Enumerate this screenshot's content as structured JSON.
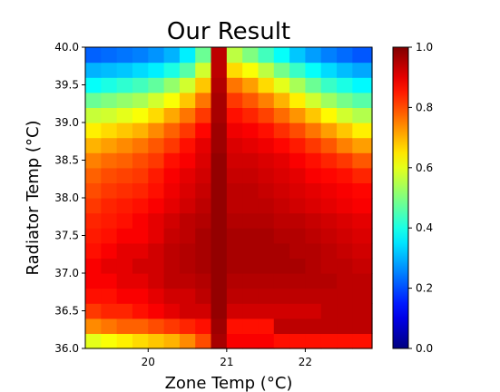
{
  "chart_data": {
    "type": "heatmap",
    "title": "Our Result",
    "xlabel": "Zone Temp (°C)",
    "ylabel": "Radiator Temp (°C)",
    "x_range": [
      19.2,
      22.85
    ],
    "y_range": [
      36.0,
      40.0
    ],
    "x_ticks": [
      "20",
      "21",
      "22"
    ],
    "x_tick_values": [
      20,
      21,
      22
    ],
    "y_ticks": [
      "36.0",
      "36.5",
      "37.0",
      "37.5",
      "38.0",
      "38.5",
      "39.0",
      "39.5",
      "40.0"
    ],
    "y_tick_values": [
      36.0,
      36.5,
      37.0,
      37.5,
      38.0,
      38.5,
      39.0,
      39.5,
      40.0
    ],
    "colormap": "jet",
    "vmin": 0.0,
    "vmax": 1.0,
    "colorbar_ticks": [
      "0.0",
      "0.2",
      "0.4",
      "0.6",
      "0.8",
      "1.0"
    ],
    "colorbar_tick_values": [
      0.0,
      0.2,
      0.4,
      0.6,
      0.8,
      1.0
    ],
    "x_centers": [
      19.3,
      19.5,
      19.7,
      19.9,
      20.1,
      20.3,
      20.5,
      20.7,
      20.9,
      21.1,
      21.3,
      21.5,
      21.7,
      21.9,
      22.1,
      22.3,
      22.5,
      22.7
    ],
    "y_centers": [
      36.1,
      36.3,
      36.5,
      36.7,
      36.9,
      37.1,
      37.3,
      37.5,
      37.7,
      37.9,
      38.1,
      38.3,
      38.5,
      38.7,
      38.9,
      39.1,
      39.3,
      39.5,
      39.7,
      39.9
    ],
    "values": [
      [
        0.6,
        0.62,
        0.64,
        0.66,
        0.68,
        0.7,
        0.74,
        0.8,
        0.96,
        0.88,
        0.88,
        0.88,
        0.86,
        0.86,
        0.86,
        0.86,
        0.86,
        0.86
      ],
      [
        0.74,
        0.76,
        0.78,
        0.78,
        0.8,
        0.82,
        0.84,
        0.86,
        0.97,
        0.86,
        0.86,
        0.86,
        0.94,
        0.94,
        0.94,
        0.94,
        0.94,
        0.94
      ],
      [
        0.82,
        0.84,
        0.84,
        0.86,
        0.88,
        0.9,
        0.92,
        0.92,
        0.98,
        0.92,
        0.92,
        0.92,
        0.92,
        0.92,
        0.92,
        0.94,
        0.94,
        0.94
      ],
      [
        0.86,
        0.86,
        0.88,
        0.88,
        0.9,
        0.92,
        0.92,
        0.94,
        0.98,
        0.94,
        0.94,
        0.94,
        0.94,
        0.94,
        0.94,
        0.94,
        0.94,
        0.94
      ],
      [
        0.88,
        0.88,
        0.9,
        0.9,
        0.92,
        0.94,
        0.94,
        0.95,
        0.98,
        0.95,
        0.95,
        0.95,
        0.95,
        0.95,
        0.95,
        0.95,
        0.94,
        0.94
      ],
      [
        0.88,
        0.9,
        0.9,
        0.92,
        0.92,
        0.94,
        0.95,
        0.96,
        0.98,
        0.96,
        0.96,
        0.96,
        0.96,
        0.96,
        0.95,
        0.94,
        0.94,
        0.93
      ],
      [
        0.86,
        0.88,
        0.9,
        0.9,
        0.92,
        0.94,
        0.95,
        0.96,
        0.98,
        0.96,
        0.96,
        0.96,
        0.96,
        0.95,
        0.95,
        0.94,
        0.93,
        0.92
      ],
      [
        0.85,
        0.86,
        0.88,
        0.88,
        0.9,
        0.93,
        0.94,
        0.96,
        0.98,
        0.96,
        0.96,
        0.96,
        0.95,
        0.95,
        0.94,
        0.93,
        0.92,
        0.91
      ],
      [
        0.84,
        0.85,
        0.86,
        0.88,
        0.9,
        0.92,
        0.94,
        0.95,
        0.98,
        0.95,
        0.95,
        0.95,
        0.94,
        0.94,
        0.93,
        0.92,
        0.91,
        0.9
      ],
      [
        0.82,
        0.84,
        0.85,
        0.86,
        0.88,
        0.9,
        0.92,
        0.94,
        0.98,
        0.94,
        0.94,
        0.94,
        0.93,
        0.92,
        0.91,
        0.9,
        0.89,
        0.88
      ],
      [
        0.8,
        0.82,
        0.83,
        0.84,
        0.86,
        0.89,
        0.91,
        0.93,
        0.98,
        0.94,
        0.94,
        0.93,
        0.92,
        0.91,
        0.9,
        0.89,
        0.88,
        0.87
      ],
      [
        0.78,
        0.8,
        0.81,
        0.82,
        0.85,
        0.88,
        0.9,
        0.92,
        0.98,
        0.93,
        0.93,
        0.92,
        0.91,
        0.9,
        0.88,
        0.87,
        0.86,
        0.84
      ],
      [
        0.75,
        0.77,
        0.78,
        0.8,
        0.82,
        0.86,
        0.88,
        0.91,
        0.98,
        0.92,
        0.92,
        0.91,
        0.9,
        0.88,
        0.86,
        0.84,
        0.82,
        0.79
      ],
      [
        0.7,
        0.72,
        0.74,
        0.76,
        0.79,
        0.82,
        0.86,
        0.9,
        0.97,
        0.91,
        0.9,
        0.89,
        0.87,
        0.85,
        0.82,
        0.79,
        0.75,
        0.72
      ],
      [
        0.64,
        0.66,
        0.68,
        0.7,
        0.74,
        0.78,
        0.82,
        0.87,
        0.97,
        0.89,
        0.88,
        0.86,
        0.83,
        0.8,
        0.76,
        0.72,
        0.68,
        0.64
      ],
      [
        0.57,
        0.58,
        0.6,
        0.62,
        0.66,
        0.71,
        0.76,
        0.82,
        0.96,
        0.86,
        0.84,
        0.81,
        0.77,
        0.73,
        0.68,
        0.63,
        0.58,
        0.55
      ],
      [
        0.48,
        0.5,
        0.52,
        0.54,
        0.58,
        0.62,
        0.68,
        0.76,
        0.96,
        0.82,
        0.79,
        0.75,
        0.7,
        0.64,
        0.58,
        0.53,
        0.49,
        0.46
      ],
      [
        0.38,
        0.4,
        0.42,
        0.44,
        0.47,
        0.52,
        0.58,
        0.68,
        0.95,
        0.76,
        0.72,
        0.66,
        0.6,
        0.54,
        0.48,
        0.43,
        0.4,
        0.37
      ],
      [
        0.3,
        0.31,
        0.32,
        0.34,
        0.36,
        0.4,
        0.46,
        0.58,
        0.94,
        0.66,
        0.62,
        0.56,
        0.49,
        0.43,
        0.38,
        0.34,
        0.31,
        0.29
      ],
      [
        0.22,
        0.23,
        0.24,
        0.25,
        0.27,
        0.3,
        0.36,
        0.48,
        0.94,
        0.56,
        0.5,
        0.44,
        0.38,
        0.32,
        0.28,
        0.25,
        0.23,
        0.21
      ]
    ]
  }
}
